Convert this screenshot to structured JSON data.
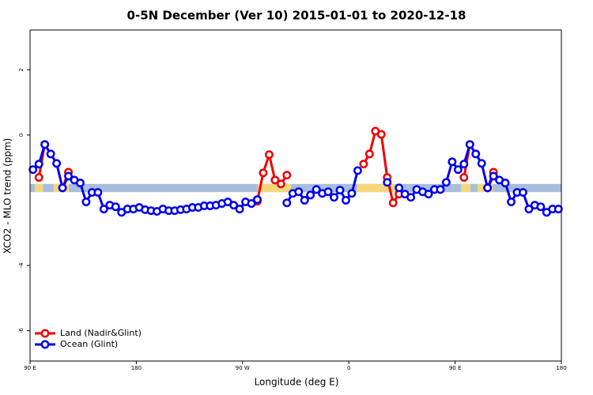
{
  "chart_data": {
    "type": "line",
    "title": "0-5N December (Ver 10)   2015-01-01 to 2020-12-18",
    "x_label": "Longitude (deg E)",
    "y_label": "XCO2 - MLO trend (ppm)",
    "x": [
      92.5,
      97.5,
      102.5,
      107.5,
      112.5,
      117.5,
      122.5,
      127.5,
      132.5,
      137.5,
      142.5,
      147.5,
      152.5,
      157.5,
      162.5,
      167.5,
      172.5,
      177.5,
      182.5,
      187.5,
      192.5,
      197.5,
      202.5,
      207.5,
      212.5,
      217.5,
      222.5,
      227.5,
      232.5,
      237.5,
      242.5,
      247.5,
      252.5,
      257.5,
      262.5,
      267.5,
      272.5,
      277.5,
      282.5,
      287.5,
      292.5,
      297.5,
      302.5,
      307.5,
      312.5,
      317.5,
      322.5,
      327.5,
      332.5,
      337.5,
      342.5,
      347.5,
      352.5,
      357.5,
      362.5,
      367.5,
      372.5,
      377.5,
      382.5,
      387.5,
      392.5,
      397.5,
      402.5,
      407.5,
      412.5,
      417.5,
      422.5,
      427.5,
      432.5,
      437.5,
      442.5,
      447.5,
      452.5,
      457.5,
      462.5,
      467.5,
      472.5,
      477.5,
      482.5,
      487.5,
      492.5,
      497.5,
      502.5,
      507.5,
      512.5,
      517.5,
      522.5,
      527.5,
      532.5,
      537.5
    ],
    "series": [
      {
        "name": "Land (Nadir&Glint)",
        "color": "#ee0000",
        "values": [
          null,
          -1.3,
          -0.29,
          null,
          null,
          -1.62,
          -1.14,
          null,
          null,
          null,
          null,
          null,
          null,
          null,
          null,
          null,
          null,
          null,
          null,
          null,
          null,
          null,
          null,
          null,
          null,
          null,
          null,
          null,
          null,
          null,
          null,
          null,
          null,
          null,
          null,
          null,
          null,
          null,
          -2.03,
          -1.16,
          -0.6,
          -1.38,
          -1.5,
          -1.23,
          null,
          null,
          null,
          null,
          null,
          null,
          null,
          null,
          null,
          null,
          null,
          null,
          -0.89,
          -0.58,
          0.12,
          0.02,
          -1.3,
          -2.08,
          -1.81,
          null,
          null,
          null,
          null,
          null,
          null,
          null,
          null,
          null,
          null,
          -1.3,
          -0.29,
          null,
          null,
          -1.62,
          -1.14,
          null,
          null,
          null,
          null,
          null,
          null,
          null,
          null,
          null,
          null,
          null
        ]
      },
      {
        "name": "Ocean (Glint)",
        "color": "#0000ee",
        "values": [
          -1.06,
          -0.89,
          -0.29,
          -0.58,
          -0.87,
          -1.62,
          -1.26,
          -1.38,
          -1.47,
          -2.05,
          -1.76,
          -1.76,
          -2.27,
          -2.15,
          -2.2,
          -2.37,
          -2.27,
          -2.27,
          -2.22,
          -2.29,
          -2.32,
          -2.34,
          -2.27,
          -2.32,
          -2.32,
          -2.29,
          -2.27,
          -2.22,
          -2.22,
          -2.17,
          -2.17,
          -2.15,
          -2.1,
          -2.05,
          -2.15,
          -2.27,
          -2.05,
          -2.1,
          -1.98,
          null,
          null,
          null,
          null,
          -2.08,
          -1.79,
          -1.74,
          -2.0,
          -1.84,
          -1.67,
          -1.79,
          -1.74,
          -1.91,
          -1.69,
          -2.0,
          -1.79,
          -1.09,
          null,
          null,
          null,
          null,
          -1.45,
          null,
          -1.62,
          -1.81,
          -1.91,
          -1.67,
          -1.74,
          -1.81,
          -1.67,
          -1.67,
          -1.45,
          -0.82,
          -1.06,
          -0.89,
          -0.29,
          -0.58,
          -0.87,
          -1.62,
          -1.26,
          -1.38,
          -1.47,
          -2.05,
          -1.76,
          -1.76,
          -2.27,
          -2.15,
          -2.2,
          -2.37,
          -2.27,
          -2.27
        ]
      }
    ],
    "band": {
      "range": [
        -1.75,
        -1.5
      ],
      "color": "#a8bedc",
      "highlight_color": "#f6d77c",
      "highlight_spans": [
        [
          94,
          101
        ],
        [
          110,
          123
        ],
        [
          283,
          311
        ],
        [
          367,
          399
        ],
        [
          455,
          463
        ],
        [
          469,
          482
        ]
      ]
    },
    "xlim": [
      90,
      540
    ],
    "xticks": [
      {
        "value": 90,
        "label": "90 E"
      },
      180,
      {
        "value": 270,
        "label": "90 W"
      },
      {
        "value": 360,
        "label": "0"
      },
      {
        "value": 450,
        "label": "90 E"
      },
      {
        "value": 540,
        "label": "180"
      }
    ],
    "ylim": [
      -6.93,
      3.22
    ],
    "yticks": [
      -6,
      -4,
      0,
      2
    ],
    "legend": "bottom-left"
  }
}
